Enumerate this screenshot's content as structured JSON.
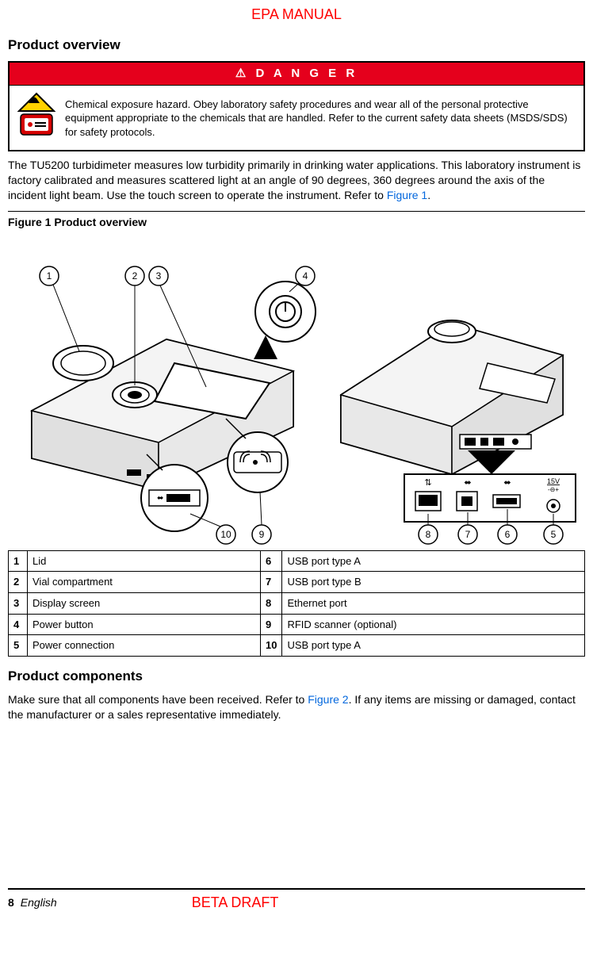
{
  "header": {
    "manual": "EPA MANUAL"
  },
  "section1_title": "Product overview",
  "danger": {
    "header": "D A N G E R",
    "warning_symbol": "⚠",
    "text": "Chemical exposure hazard. Obey laboratory safety procedures and wear all of the personal protective equipment appropriate to the chemicals that are handled. Refer to the current safety data sheets (MSDS/SDS) for safety protocols."
  },
  "overview_text_pre": "The TU5200 turbidimeter measures low turbidity primarily in drinking water applications. This laboratory instrument is factory calibrated and measures scattered light at an angle of 90 degrees, 360 degrees around the axis of the incident light beam. Use the touch screen to operate the instrument. Refer to ",
  "overview_figlink": "Figure 1",
  "overview_text_post": ".",
  "figure1_title": "Figure 1  Product overview",
  "parts": [
    {
      "n": "1",
      "label": "Lid",
      "n2": "6",
      "label2": "USB port type A"
    },
    {
      "n": "2",
      "label": "Vial compartment",
      "n2": "7",
      "label2": "USB port type B"
    },
    {
      "n": "3",
      "label": "Display screen",
      "n2": "8",
      "label2": "Ethernet port"
    },
    {
      "n": "4",
      "label": "Power button",
      "n2": "9",
      "label2": "RFID scanner (optional)"
    },
    {
      "n": "5",
      "label": "Power connection",
      "n2": "10",
      "label2": "USB port type A"
    }
  ],
  "section2_title": "Product components",
  "components_text_pre": "Make sure that all components have been received. Refer to ",
  "components_figlink": "Figure 2",
  "components_text_post": ". If any items are missing or damaged, contact the manufacturer or a sales representative immediately.",
  "footer": {
    "page": "8",
    "lang": "English",
    "beta": "BETA DRAFT"
  },
  "port_labels": {
    "voltage": "15V",
    "polarity": "-⊖+"
  },
  "colors": {
    "danger_bg": "#e5001c",
    "link": "#0066dd",
    "warn_yellow": "#ffd200",
    "warn_red": "#d40000"
  }
}
